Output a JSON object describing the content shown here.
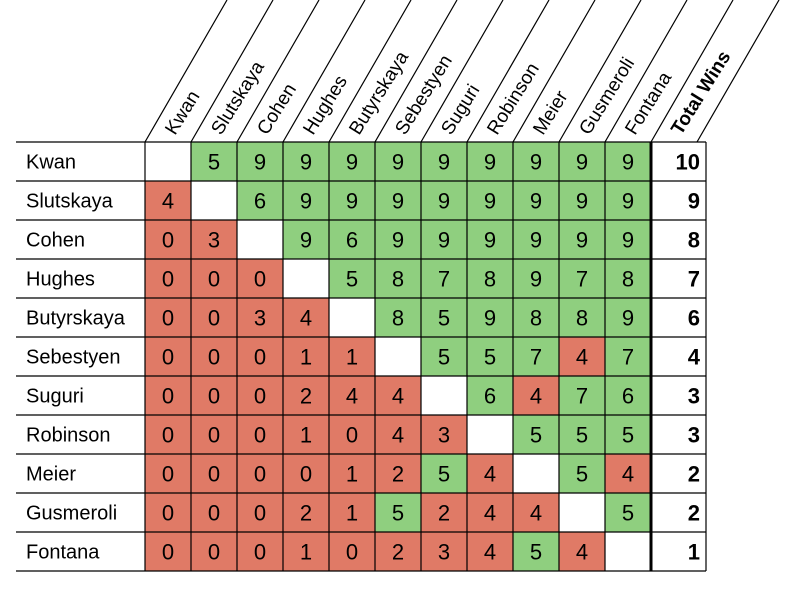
{
  "chart_data": {
    "type": "table",
    "title": "",
    "columns": [
      "Kwan",
      "Slutskaya",
      "Cohen",
      "Hughes",
      "Butyrskaya",
      "Sebestyen",
      "Suguri",
      "Robinson",
      "Meier",
      "Gusmeroli",
      "Fontana"
    ],
    "total_header": "Total Wins",
    "rows": [
      {
        "name": "Kwan",
        "values": [
          null,
          5,
          9,
          9,
          9,
          9,
          9,
          9,
          9,
          9,
          9
        ],
        "total": 10
      },
      {
        "name": "Slutskaya",
        "values": [
          4,
          null,
          6,
          9,
          9,
          9,
          9,
          9,
          9,
          9,
          9
        ],
        "total": 9
      },
      {
        "name": "Cohen",
        "values": [
          0,
          3,
          null,
          9,
          6,
          9,
          9,
          9,
          9,
          9,
          9
        ],
        "total": 8
      },
      {
        "name": "Hughes",
        "values": [
          0,
          0,
          0,
          null,
          5,
          8,
          7,
          8,
          9,
          7,
          8
        ],
        "total": 7
      },
      {
        "name": "Butyrskaya",
        "values": [
          0,
          0,
          3,
          4,
          null,
          8,
          5,
          9,
          8,
          8,
          9
        ],
        "total": 6
      },
      {
        "name": "Sebestyen",
        "values": [
          0,
          0,
          0,
          1,
          1,
          null,
          5,
          5,
          7,
          4,
          7
        ],
        "total": 4
      },
      {
        "name": "Suguri",
        "values": [
          0,
          0,
          0,
          2,
          4,
          4,
          null,
          6,
          4,
          7,
          6
        ],
        "total": 3
      },
      {
        "name": "Robinson",
        "values": [
          0,
          0,
          0,
          1,
          0,
          4,
          3,
          null,
          5,
          5,
          5
        ],
        "total": 3
      },
      {
        "name": "Meier",
        "values": [
          0,
          0,
          0,
          0,
          1,
          2,
          5,
          4,
          null,
          5,
          4
        ],
        "total": 2
      },
      {
        "name": "Gusmeroli",
        "values": [
          0,
          0,
          0,
          2,
          1,
          5,
          2,
          4,
          4,
          null,
          5
        ],
        "total": 2
      },
      {
        "name": "Fontana",
        "values": [
          0,
          0,
          0,
          1,
          0,
          2,
          3,
          4,
          5,
          4,
          null
        ],
        "total": 1
      }
    ],
    "colors": {
      "win": "#8fcf7f",
      "loss": "#e07a66",
      "empty": "#ffffff",
      "grid": "#000000",
      "text": "#000000"
    },
    "legend": "none"
  }
}
